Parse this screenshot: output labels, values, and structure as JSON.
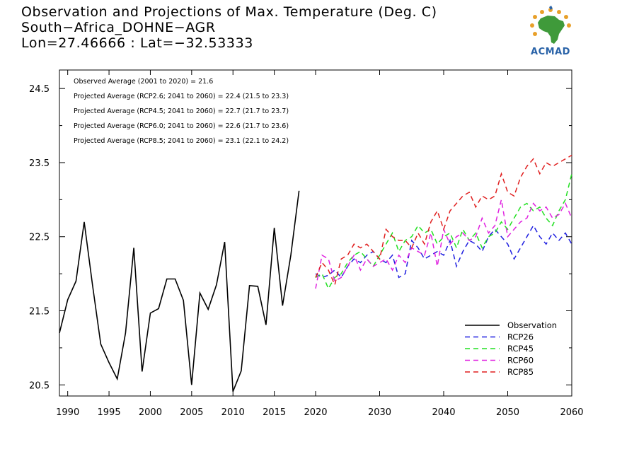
{
  "header": {
    "title_lines": [
      "Observation and Projections of Max. Temperature (Deg. C)",
      "South−Africa_DOHNE−AGR",
      "Lon=27.46666 : Lat=−32.53333"
    ],
    "logo_text": "ACMAD"
  },
  "colors": {
    "Observation": "#000000",
    "RCP26": "#1f1fe0",
    "RCP45": "#22e022",
    "RCP60": "#e022e0",
    "RCP85": "#e01f1f"
  },
  "chart_data": {
    "type": "line",
    "xlim": [
      1989,
      2060
    ],
    "ylim": [
      20.35,
      24.75
    ],
    "x_ticks": [
      1990,
      1995,
      2000,
      2005,
      2010,
      2015,
      2020,
      2030,
      2040,
      2050,
      2060
    ],
    "y_ticks": [
      20.5,
      21.5,
      22.5,
      23.5,
      24.5
    ],
    "y_tick_labels": [
      "20.5",
      "21.5",
      "22.5",
      "23.5",
      "24.5"
    ],
    "annotations": [
      "Observed Average (2001 to 2020) = 21.6",
      "Projected Average (RCP2.6; 2041 to 2060) = 22.4 (21.5 to 23.3)",
      "Projected Average (RCP4.5; 2041 to 2060) = 22.7 (21.7 to 23.7)",
      "Projected Average (RCP6.0; 2041 to 2060) = 22.6 (21.7 to 23.6)",
      "Projected Average (RCP8.5; 2041 to 2060) = 23.1 (22.1 to 24.2)"
    ],
    "legend": [
      "Observation",
      "RCP26",
      "RCP45",
      "RCP60",
      "RCP85"
    ],
    "legend_position": "bottom-right",
    "series": [
      {
        "name": "Observation",
        "style": "solid",
        "x": [
          1989,
          1990,
          1991,
          1992,
          1993,
          1994,
          1995,
          1996,
          1997,
          1998,
          1999,
          2000,
          2001,
          2002,
          2003,
          2004,
          2005,
          2006,
          2007,
          2008,
          2009,
          2010,
          2011,
          2012,
          2013,
          2014,
          2015,
          2016,
          2017,
          2018,
          2019,
          2020
        ],
        "y": [
          21.2,
          21.65,
          21.9,
          22.7,
          21.85,
          21.05,
          20.8,
          20.58,
          21.2,
          22.35,
          20.68,
          21.47,
          21.53,
          21.93,
          21.93,
          21.64,
          20.5,
          21.74,
          21.52,
          21.85,
          22.43,
          20.41,
          20.69,
          21.84,
          21.83,
          21.31,
          22.62,
          21.57,
          22.25,
          23.12,
          null,
          null
        ]
      },
      {
        "name": "RCP26",
        "style": "dashed",
        "x": [
          2020,
          2021,
          2022,
          2023,
          2024,
          2025,
          2026,
          2027,
          2028,
          2029,
          2030,
          2031,
          2032,
          2033,
          2034,
          2035,
          2036,
          2037,
          2038,
          2039,
          2040,
          2041,
          2042,
          2043,
          2044,
          2045,
          2046,
          2047,
          2048,
          2049,
          2050,
          2051,
          2052,
          2053,
          2054,
          2055,
          2056,
          2057,
          2058,
          2059,
          2060
        ],
        "y": [
          22.0,
          21.95,
          21.98,
          22.05,
          21.95,
          22.1,
          22.2,
          22.15,
          22.25,
          22.3,
          22.2,
          22.15,
          22.25,
          21.95,
          22.0,
          22.45,
          22.35,
          22.2,
          22.25,
          22.3,
          22.25,
          22.45,
          22.1,
          22.3,
          22.45,
          22.4,
          22.3,
          22.5,
          22.6,
          22.5,
          22.4,
          22.2,
          22.35,
          22.5,
          22.65,
          22.5,
          22.4,
          22.55,
          22.45,
          22.55,
          22.4
        ]
      },
      {
        "name": "RCP45",
        "style": "dashed",
        "x": [
          2020,
          2021,
          2022,
          2023,
          2024,
          2025,
          2026,
          2027,
          2028,
          2029,
          2030,
          2031,
          2032,
          2033,
          2034,
          2035,
          2036,
          2037,
          2038,
          2039,
          2040,
          2041,
          2042,
          2043,
          2044,
          2045,
          2046,
          2047,
          2048,
          2049,
          2050,
          2051,
          2052,
          2053,
          2054,
          2055,
          2056,
          2057,
          2058,
          2059,
          2060
        ],
        "y": [
          21.95,
          22.0,
          21.8,
          21.95,
          22.0,
          22.15,
          22.25,
          22.3,
          22.2,
          22.1,
          22.25,
          22.4,
          22.55,
          22.3,
          22.45,
          22.5,
          22.65,
          22.55,
          22.6,
          22.4,
          22.5,
          22.55,
          22.35,
          22.6,
          22.45,
          22.55,
          22.35,
          22.5,
          22.55,
          22.7,
          22.6,
          22.75,
          22.9,
          22.95,
          22.85,
          22.9,
          22.75,
          22.65,
          22.85,
          23.0,
          23.35
        ]
      },
      {
        "name": "RCP60",
        "style": "dashed",
        "x": [
          2020,
          2021,
          2022,
          2023,
          2024,
          2025,
          2026,
          2027,
          2028,
          2029,
          2030,
          2031,
          2032,
          2033,
          2034,
          2035,
          2036,
          2037,
          2038,
          2039,
          2040,
          2041,
          2042,
          2043,
          2044,
          2045,
          2046,
          2047,
          2048,
          2049,
          2050,
          2051,
          2052,
          2053,
          2054,
          2055,
          2056,
          2057,
          2058,
          2059,
          2060
        ],
        "y": [
          21.8,
          22.25,
          22.2,
          21.9,
          21.95,
          22.1,
          22.25,
          22.05,
          22.2,
          22.1,
          22.15,
          22.2,
          22.05,
          22.25,
          22.15,
          22.35,
          22.3,
          22.25,
          22.55,
          22.1,
          22.6,
          22.4,
          22.5,
          22.55,
          22.45,
          22.5,
          22.75,
          22.55,
          22.65,
          23.0,
          22.5,
          22.6,
          22.7,
          22.75,
          22.95,
          22.85,
          22.9,
          22.75,
          22.8,
          22.95,
          22.75
        ]
      },
      {
        "name": "RCP85",
        "style": "dashed",
        "x": [
          2020,
          2021,
          2022,
          2023,
          2024,
          2025,
          2026,
          2027,
          2028,
          2029,
          2030,
          2031,
          2032,
          2033,
          2034,
          2035,
          2036,
          2037,
          2038,
          2039,
          2040,
          2041,
          2042,
          2043,
          2044,
          2045,
          2046,
          2047,
          2048,
          2049,
          2050,
          2051,
          2052,
          2053,
          2054,
          2055,
          2056,
          2057,
          2058,
          2059,
          2060
        ],
        "y": [
          21.95,
          22.15,
          22.05,
          21.85,
          22.2,
          22.25,
          22.4,
          22.35,
          22.4,
          22.3,
          22.2,
          22.6,
          22.5,
          22.45,
          22.45,
          22.35,
          22.55,
          22.4,
          22.7,
          22.85,
          22.6,
          22.85,
          22.95,
          23.05,
          23.1,
          22.9,
          23.05,
          23.0,
          23.05,
          23.35,
          23.1,
          23.05,
          23.3,
          23.45,
          23.55,
          23.35,
          23.5,
          23.45,
          23.5,
          23.55,
          23.6
        ]
      }
    ]
  }
}
